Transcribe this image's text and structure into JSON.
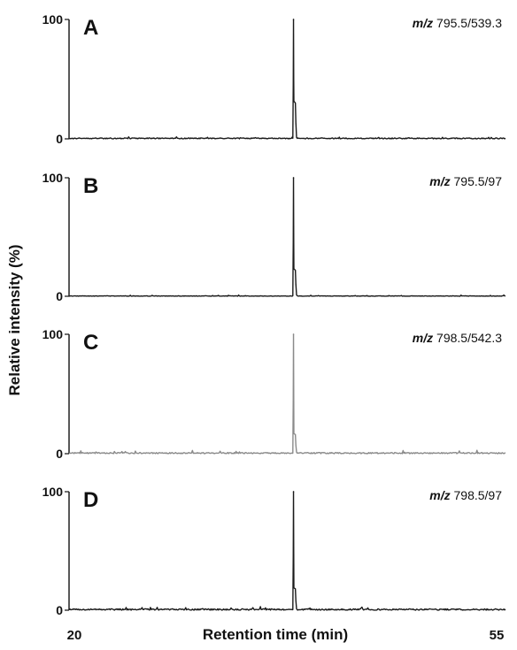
{
  "chart_data": {
    "type": "line",
    "xlabel": "Retention time (min)",
    "ylabel": "Relative intensity (%)",
    "xlim": [
      20,
      55
    ],
    "x_ticks": [
      "20",
      "55"
    ],
    "panels": [
      {
        "id": "A",
        "mz_prefix": "m/z",
        "mz_value": "795.5/539.3",
        "ylim": [
          0,
          100
        ],
        "y_ticks": [
          "0",
          "100"
        ],
        "line_color": "#1a1a1a",
        "peak": {
          "x": 38.0,
          "y": 100
        },
        "shoulder": {
          "x": 38.15,
          "y": 30
        },
        "baseline_noise": 0.8
      },
      {
        "id": "B",
        "mz_prefix": "m/z",
        "mz_value": "795.5/97",
        "ylim": [
          0,
          100
        ],
        "y_ticks": [
          "0",
          "100"
        ],
        "line_color": "#1a1a1a",
        "peak": {
          "x": 38.0,
          "y": 100
        },
        "shoulder": {
          "x": 38.15,
          "y": 22
        },
        "baseline_noise": 0.4
      },
      {
        "id": "C",
        "mz_prefix": "m/z",
        "mz_value": "798.5/542.3",
        "ylim": [
          0,
          100
        ],
        "y_ticks": [
          "0",
          "100"
        ],
        "line_color": "#8a8a8a",
        "peak": {
          "x": 38.0,
          "y": 100
        },
        "shoulder": {
          "x": 38.15,
          "y": 16
        },
        "baseline_noise": 1.0
      },
      {
        "id": "D",
        "mz_prefix": "m/z",
        "mz_value": "798.5/97",
        "ylim": [
          0,
          100
        ],
        "y_ticks": [
          "0",
          "100"
        ],
        "line_color": "#1a1a1a",
        "peak": {
          "x": 38.0,
          "y": 100
        },
        "shoulder": {
          "x": 38.15,
          "y": 18
        },
        "baseline_noise": 1.2
      }
    ]
  }
}
